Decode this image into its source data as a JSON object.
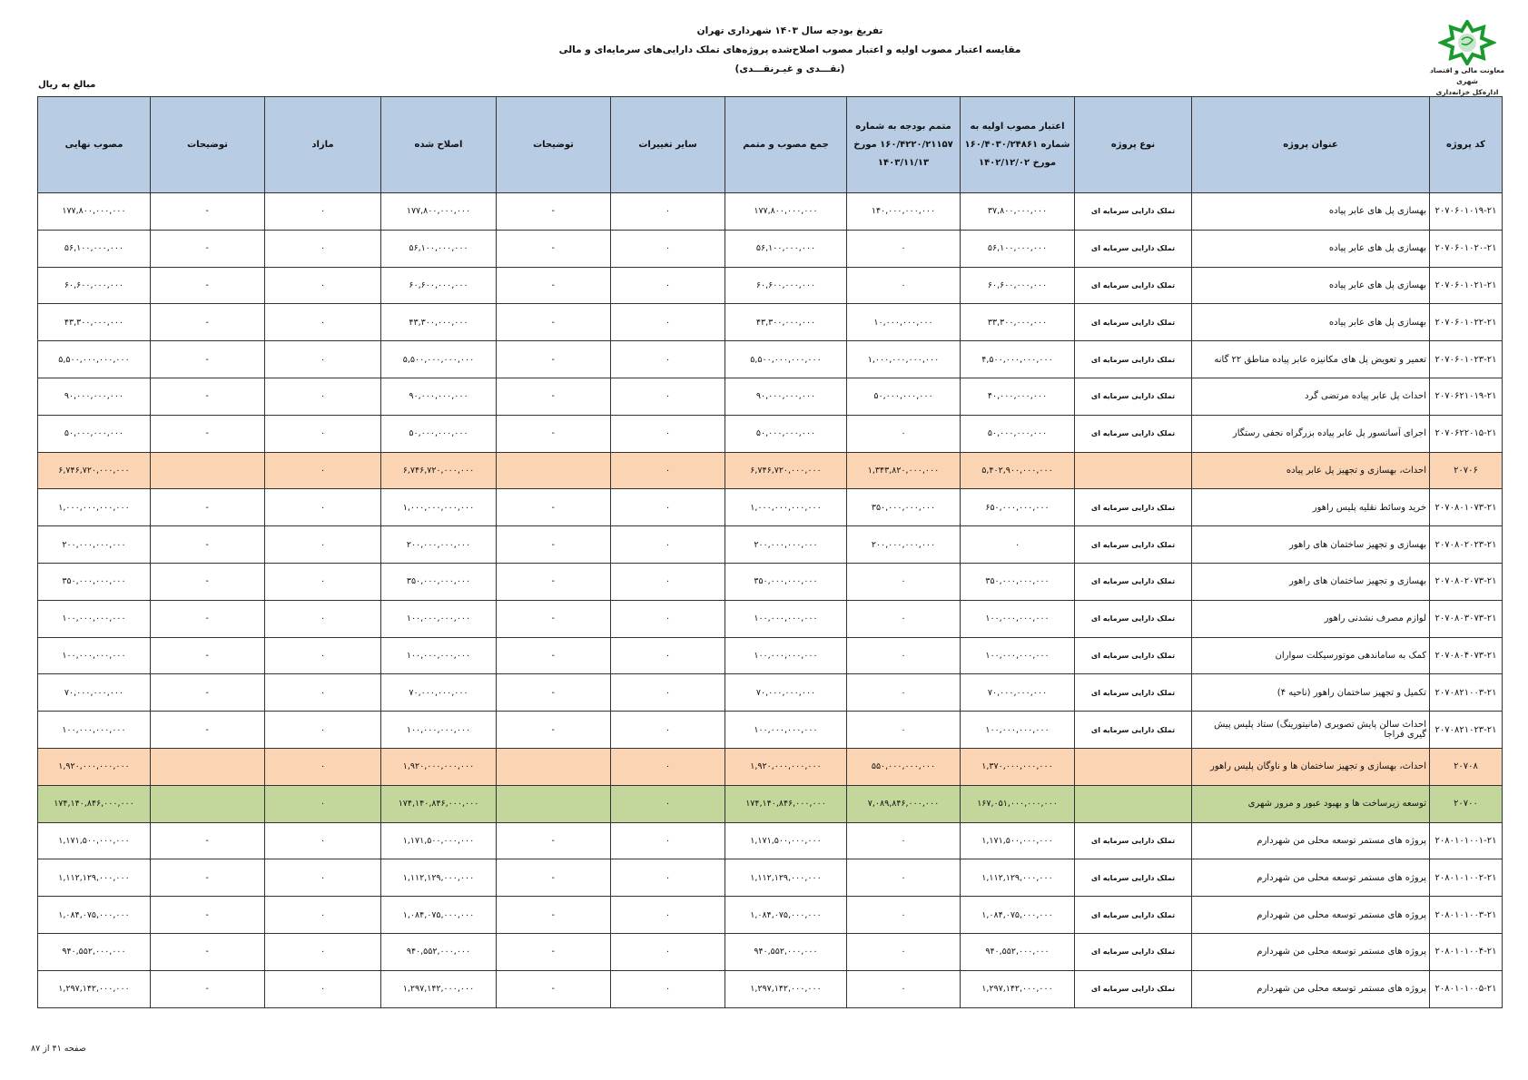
{
  "header": {
    "title_line1": "تفریغ بودجه سال ۱۴۰۳ شهرداری تهران",
    "title_line2": "مقایسه اعتبار مصوب اولیه و اعتبار مصوب اصلاح‌شده پروژه‌های تملک دارایی‌های سرمایه‌ای و مالی",
    "title_line3": "(نقـــدی و غیـرنقـــدی)",
    "unit": "مبالغ به ریال"
  },
  "logo": {
    "line1": "معاونت مالی و اقتصاد شهری",
    "line2": "اداره‌کل خزانه‌داری",
    "color": "#1a9a2e"
  },
  "colors": {
    "header_bg": "#b8cce4",
    "group_bg": "#fbd4b4",
    "program_bg": "#c3d69b"
  },
  "table": {
    "columns": {
      "code": "کد پروژه",
      "title": "عنوان پروژه",
      "type": "نوع پروژه",
      "initial": "اعتبار مصوب اولیه به شماره ۱۶۰/۴۰۳۰/۲۴۸۶۱ مورخ ۱۴۰۲/۱۲/۰۲",
      "supplement": "متمم بودجه به شماره ۱۶۰/۴۲۲۰/۲۱۱۵۷ مورخ ۱۴۰۳/۱۱/۱۳",
      "total": "جمع مصوب و متمم",
      "other_changes": "سایر تغییرات",
      "notes": "توضیحات",
      "amended": "اصلاح شده",
      "surplus": "مازاد",
      "notes2": "توضیحات",
      "final": "مصوب نهایی"
    },
    "rows": [
      {
        "level": "item",
        "code": "۲۰۷۰۶۰۱۰۱۹-۲۱",
        "title": "بهسازی پل های عابر پیاده",
        "type": "تملک دارایی سرمایه ای",
        "initial": "۳۷,۸۰۰,۰۰۰,۰۰۰",
        "supplement": "۱۴۰,۰۰۰,۰۰۰,۰۰۰",
        "total": "۱۷۷,۸۰۰,۰۰۰,۰۰۰",
        "other_changes": "۰",
        "notes": "-",
        "amended": "۱۷۷,۸۰۰,۰۰۰,۰۰۰",
        "surplus": "۰",
        "notes2": "-",
        "final": "۱۷۷,۸۰۰,۰۰۰,۰۰۰"
      },
      {
        "level": "item",
        "code": "۲۰۷۰۶۰۱۰۲۰-۲۱",
        "title": "بهسازی پل های عابر پیاده",
        "type": "تملک دارایی سرمایه ای",
        "initial": "۵۶,۱۰۰,۰۰۰,۰۰۰",
        "supplement": "۰",
        "total": "۵۶,۱۰۰,۰۰۰,۰۰۰",
        "other_changes": "۰",
        "notes": "-",
        "amended": "۵۶,۱۰۰,۰۰۰,۰۰۰",
        "surplus": "۰",
        "notes2": "-",
        "final": "۵۶,۱۰۰,۰۰۰,۰۰۰"
      },
      {
        "level": "item",
        "code": "۲۰۷۰۶۰۱۰۲۱-۲۱",
        "title": "بهسازی پل های عابر پیاده",
        "type": "تملک دارایی سرمایه ای",
        "initial": "۶۰,۶۰۰,۰۰۰,۰۰۰",
        "supplement": "۰",
        "total": "۶۰,۶۰۰,۰۰۰,۰۰۰",
        "other_changes": "۰",
        "notes": "-",
        "amended": "۶۰,۶۰۰,۰۰۰,۰۰۰",
        "surplus": "۰",
        "notes2": "-",
        "final": "۶۰,۶۰۰,۰۰۰,۰۰۰"
      },
      {
        "level": "item",
        "code": "۲۰۷۰۶۰۱۰۲۲-۲۱",
        "title": "بهسازی پل های عابر پیاده",
        "type": "تملک دارایی سرمایه ای",
        "initial": "۳۳,۳۰۰,۰۰۰,۰۰۰",
        "supplement": "۱۰,۰۰۰,۰۰۰,۰۰۰",
        "total": "۴۳,۳۰۰,۰۰۰,۰۰۰",
        "other_changes": "۰",
        "notes": "-",
        "amended": "۴۳,۳۰۰,۰۰۰,۰۰۰",
        "surplus": "۰",
        "notes2": "-",
        "final": "۴۳,۳۰۰,۰۰۰,۰۰۰"
      },
      {
        "level": "item",
        "code": "۲۰۷۰۶۰۱۰۲۳-۲۱",
        "title": "تعمیر و تعویض پل های مکانیزه عابر پیاده مناطق ۲۲ گانه",
        "type": "تملک دارایی سرمایه ای",
        "initial": "۴,۵۰۰,۰۰۰,۰۰۰,۰۰۰",
        "supplement": "۱,۰۰۰,۰۰۰,۰۰۰,۰۰۰",
        "total": "۵,۵۰۰,۰۰۰,۰۰۰,۰۰۰",
        "other_changes": "۰",
        "notes": "-",
        "amended": "۵,۵۰۰,۰۰۰,۰۰۰,۰۰۰",
        "surplus": "۰",
        "notes2": "-",
        "final": "۵,۵۰۰,۰۰۰,۰۰۰,۰۰۰"
      },
      {
        "level": "item",
        "code": "۲۰۷۰۶۲۱۰۱۹-۲۱",
        "title": "احداث پل عابر پیاده مرتضی گرد",
        "type": "تملک دارایی سرمایه ای",
        "initial": "۴۰,۰۰۰,۰۰۰,۰۰۰",
        "supplement": "۵۰,۰۰۰,۰۰۰,۰۰۰",
        "total": "۹۰,۰۰۰,۰۰۰,۰۰۰",
        "other_changes": "۰",
        "notes": "-",
        "amended": "۹۰,۰۰۰,۰۰۰,۰۰۰",
        "surplus": "۰",
        "notes2": "-",
        "final": "۹۰,۰۰۰,۰۰۰,۰۰۰"
      },
      {
        "level": "item",
        "code": "۲۰۷۰۶۲۲۰۱۵-۲۱",
        "title": "اجرای آسانسور پل عابر پیاده  بزرگراه نجفی رستگار",
        "type": "تملک دارایی سرمایه ای",
        "initial": "۵۰,۰۰۰,۰۰۰,۰۰۰",
        "supplement": "۰",
        "total": "۵۰,۰۰۰,۰۰۰,۰۰۰",
        "other_changes": "۰",
        "notes": "-",
        "amended": "۵۰,۰۰۰,۰۰۰,۰۰۰",
        "surplus": "۰",
        "notes2": "-",
        "final": "۵۰,۰۰۰,۰۰۰,۰۰۰"
      },
      {
        "level": "group",
        "code": "۲۰۷۰۶",
        "title": "احداث، بهسازی و تجهیز پل عابر پیاده",
        "type": "",
        "initial": "۵,۴۰۲,۹۰۰,۰۰۰,۰۰۰",
        "supplement": "۱,۳۴۳,۸۲۰,۰۰۰,۰۰۰",
        "total": "۶,۷۴۶,۷۲۰,۰۰۰,۰۰۰",
        "other_changes": "۰",
        "notes": "",
        "amended": "۶,۷۴۶,۷۲۰,۰۰۰,۰۰۰",
        "surplus": "۰",
        "notes2": "",
        "final": "۶,۷۴۶,۷۲۰,۰۰۰,۰۰۰"
      },
      {
        "level": "item",
        "code": "۲۰۷۰۸۰۱۰۷۳-۲۱",
        "title": "خرید وسائط نقلیه پلیس راهور",
        "type": "تملک دارایی سرمایه ای",
        "initial": "۶۵۰,۰۰۰,۰۰۰,۰۰۰",
        "supplement": "۳۵۰,۰۰۰,۰۰۰,۰۰۰",
        "total": "۱,۰۰۰,۰۰۰,۰۰۰,۰۰۰",
        "other_changes": "۰",
        "notes": "-",
        "amended": "۱,۰۰۰,۰۰۰,۰۰۰,۰۰۰",
        "surplus": "۰",
        "notes2": "-",
        "final": "۱,۰۰۰,۰۰۰,۰۰۰,۰۰۰"
      },
      {
        "level": "item",
        "code": "۲۰۷۰۸۰۲۰۲۳-۲۱",
        "title": "بهسازی و تجهیز ساختمان های راهور",
        "type": "تملک دارایی سرمایه ای",
        "initial": "۰",
        "supplement": "۲۰۰,۰۰۰,۰۰۰,۰۰۰",
        "total": "۲۰۰,۰۰۰,۰۰۰,۰۰۰",
        "other_changes": "۰",
        "notes": "-",
        "amended": "۲۰۰,۰۰۰,۰۰۰,۰۰۰",
        "surplus": "۰",
        "notes2": "-",
        "final": "۲۰۰,۰۰۰,۰۰۰,۰۰۰"
      },
      {
        "level": "item",
        "code": "۲۰۷۰۸۰۲۰۷۳-۲۱",
        "title": "بهسازی و تجهیز ساختمان های راهور",
        "type": "تملک دارایی سرمایه ای",
        "initial": "۳۵۰,۰۰۰,۰۰۰,۰۰۰",
        "supplement": "۰",
        "total": "۳۵۰,۰۰۰,۰۰۰,۰۰۰",
        "other_changes": "۰",
        "notes": "-",
        "amended": "۳۵۰,۰۰۰,۰۰۰,۰۰۰",
        "surplus": "۰",
        "notes2": "-",
        "final": "۳۵۰,۰۰۰,۰۰۰,۰۰۰"
      },
      {
        "level": "item",
        "code": "۲۰۷۰۸۰۳۰۷۳-۲۱",
        "title": "لوازم مصرف نشدنی راهور",
        "type": "تملک دارایی سرمایه ای",
        "initial": "۱۰۰,۰۰۰,۰۰۰,۰۰۰",
        "supplement": "۰",
        "total": "۱۰۰,۰۰۰,۰۰۰,۰۰۰",
        "other_changes": "۰",
        "notes": "-",
        "amended": "۱۰۰,۰۰۰,۰۰۰,۰۰۰",
        "surplus": "۰",
        "notes2": "-",
        "final": "۱۰۰,۰۰۰,۰۰۰,۰۰۰"
      },
      {
        "level": "item",
        "code": "۲۰۷۰۸۰۴۰۷۳-۲۱",
        "title": "کمک به ساماندهی موتورسیکلت سواران",
        "type": "تملک دارایی سرمایه ای",
        "initial": "۱۰۰,۰۰۰,۰۰۰,۰۰۰",
        "supplement": "۰",
        "total": "۱۰۰,۰۰۰,۰۰۰,۰۰۰",
        "other_changes": "۰",
        "notes": "-",
        "amended": "۱۰۰,۰۰۰,۰۰۰,۰۰۰",
        "surplus": "۰",
        "notes2": "-",
        "final": "۱۰۰,۰۰۰,۰۰۰,۰۰۰"
      },
      {
        "level": "item",
        "code": "۲۰۷۰۸۲۱۰۰۳-۲۱",
        "title": "تکمیل و تجهیز ساختمان راهور (ناحیه ۴)",
        "type": "تملک دارایی سرمایه ای",
        "initial": "۷۰,۰۰۰,۰۰۰,۰۰۰",
        "supplement": "۰",
        "total": "۷۰,۰۰۰,۰۰۰,۰۰۰",
        "other_changes": "۰",
        "notes": "-",
        "amended": "۷۰,۰۰۰,۰۰۰,۰۰۰",
        "surplus": "۰",
        "notes2": "-",
        "final": "۷۰,۰۰۰,۰۰۰,۰۰۰"
      },
      {
        "level": "item",
        "code": "۲۰۷۰۸۲۱۰۲۳-۲۱",
        "title": "احداث سالن پایش تصویری (مانیتورینگ) ستاد پلیس پیش گیری فراجا",
        "type": "تملک دارایی سرمایه ای",
        "initial": "۱۰۰,۰۰۰,۰۰۰,۰۰۰",
        "supplement": "۰",
        "total": "۱۰۰,۰۰۰,۰۰۰,۰۰۰",
        "other_changes": "۰",
        "notes": "-",
        "amended": "۱۰۰,۰۰۰,۰۰۰,۰۰۰",
        "surplus": "۰",
        "notes2": "-",
        "final": "۱۰۰,۰۰۰,۰۰۰,۰۰۰"
      },
      {
        "level": "group",
        "code": "۲۰۷۰۸",
        "title": "احداث، بهسازی و تجهیز ساختمان ها و ناوگان پلیس راهور",
        "type": "",
        "initial": "۱,۳۷۰,۰۰۰,۰۰۰,۰۰۰",
        "supplement": "۵۵۰,۰۰۰,۰۰۰,۰۰۰",
        "total": "۱,۹۲۰,۰۰۰,۰۰۰,۰۰۰",
        "other_changes": "۰",
        "notes": "",
        "amended": "۱,۹۲۰,۰۰۰,۰۰۰,۰۰۰",
        "surplus": "۰",
        "notes2": "",
        "final": "۱,۹۲۰,۰۰۰,۰۰۰,۰۰۰"
      },
      {
        "level": "program",
        "code": "۲۰۷۰۰",
        "title": "توسعه زیرساخت ها و بهبود عبور و مرور شهری",
        "type": "",
        "initial": "۱۶۷,۰۵۱,۰۰۰,۰۰۰,۰۰۰",
        "supplement": "۷,۰۸۹,۸۴۶,۰۰۰,۰۰۰",
        "total": "۱۷۴,۱۴۰,۸۴۶,۰۰۰,۰۰۰",
        "other_changes": "۰",
        "notes": "",
        "amended": "۱۷۴,۱۴۰,۸۴۶,۰۰۰,۰۰۰",
        "surplus": "۰",
        "notes2": "",
        "final": "۱۷۴,۱۴۰,۸۴۶,۰۰۰,۰۰۰"
      },
      {
        "level": "item",
        "code": "۲۰۸۰۱۰۱۰۰۱-۲۱",
        "title": "پروژه های مستمر توسعه محلی من شهردارم",
        "type": "تملک دارایی سرمایه ای",
        "initial": "۱,۱۷۱,۵۰۰,۰۰۰,۰۰۰",
        "supplement": "۰",
        "total": "۱,۱۷۱,۵۰۰,۰۰۰,۰۰۰",
        "other_changes": "۰",
        "notes": "-",
        "amended": "۱,۱۷۱,۵۰۰,۰۰۰,۰۰۰",
        "surplus": "۰",
        "notes2": "-",
        "final": "۱,۱۷۱,۵۰۰,۰۰۰,۰۰۰"
      },
      {
        "level": "item",
        "code": "۲۰۸۰۱۰۱۰۰۲-۲۱",
        "title": "پروژه های مستمر توسعه محلی من شهردارم",
        "type": "تملک دارایی سرمایه ای",
        "initial": "۱,۱۱۲,۱۲۹,۰۰۰,۰۰۰",
        "supplement": "۰",
        "total": "۱,۱۱۲,۱۲۹,۰۰۰,۰۰۰",
        "other_changes": "۰",
        "notes": "-",
        "amended": "۱,۱۱۲,۱۲۹,۰۰۰,۰۰۰",
        "surplus": "۰",
        "notes2": "-",
        "final": "۱,۱۱۲,۱۲۹,۰۰۰,۰۰۰"
      },
      {
        "level": "item",
        "code": "۲۰۸۰۱۰۱۰۰۳-۲۱",
        "title": "پروژه های مستمر توسعه محلی من شهردارم",
        "type": "تملک دارایی سرمایه ای",
        "initial": "۱,۰۸۴,۰۷۵,۰۰۰,۰۰۰",
        "supplement": "۰",
        "total": "۱,۰۸۴,۰۷۵,۰۰۰,۰۰۰",
        "other_changes": "۰",
        "notes": "-",
        "amended": "۱,۰۸۴,۰۷۵,۰۰۰,۰۰۰",
        "surplus": "۰",
        "notes2": "-",
        "final": "۱,۰۸۴,۰۷۵,۰۰۰,۰۰۰"
      },
      {
        "level": "item",
        "code": "۲۰۸۰۱۰۱۰۰۴-۲۱",
        "title": "پروژه های مستمر توسعه محلی من شهردارم",
        "type": "تملک دارایی سرمایه ای",
        "initial": "۹۴۰,۵۵۲,۰۰۰,۰۰۰",
        "supplement": "۰",
        "total": "۹۴۰,۵۵۲,۰۰۰,۰۰۰",
        "other_changes": "۰",
        "notes": "-",
        "amended": "۹۴۰,۵۵۲,۰۰۰,۰۰۰",
        "surplus": "۰",
        "notes2": "-",
        "final": "۹۴۰,۵۵۲,۰۰۰,۰۰۰"
      },
      {
        "level": "item",
        "code": "۲۰۸۰۱۰۱۰۰۵-۲۱",
        "title": "پروژه های مستمر توسعه محلی من شهردارم",
        "type": "تملک دارایی سرمایه ای",
        "initial": "۱,۲۹۷,۱۴۲,۰۰۰,۰۰۰",
        "supplement": "۰",
        "total": "۱,۲۹۷,۱۴۲,۰۰۰,۰۰۰",
        "other_changes": "۰",
        "notes": "-",
        "amended": "۱,۲۹۷,۱۴۲,۰۰۰,۰۰۰",
        "surplus": "۰",
        "notes2": "-",
        "final": "۱,۲۹۷,۱۴۲,۰۰۰,۰۰۰"
      }
    ]
  },
  "footer": {
    "page": "صفحه ۴۱ از ۸۷"
  }
}
